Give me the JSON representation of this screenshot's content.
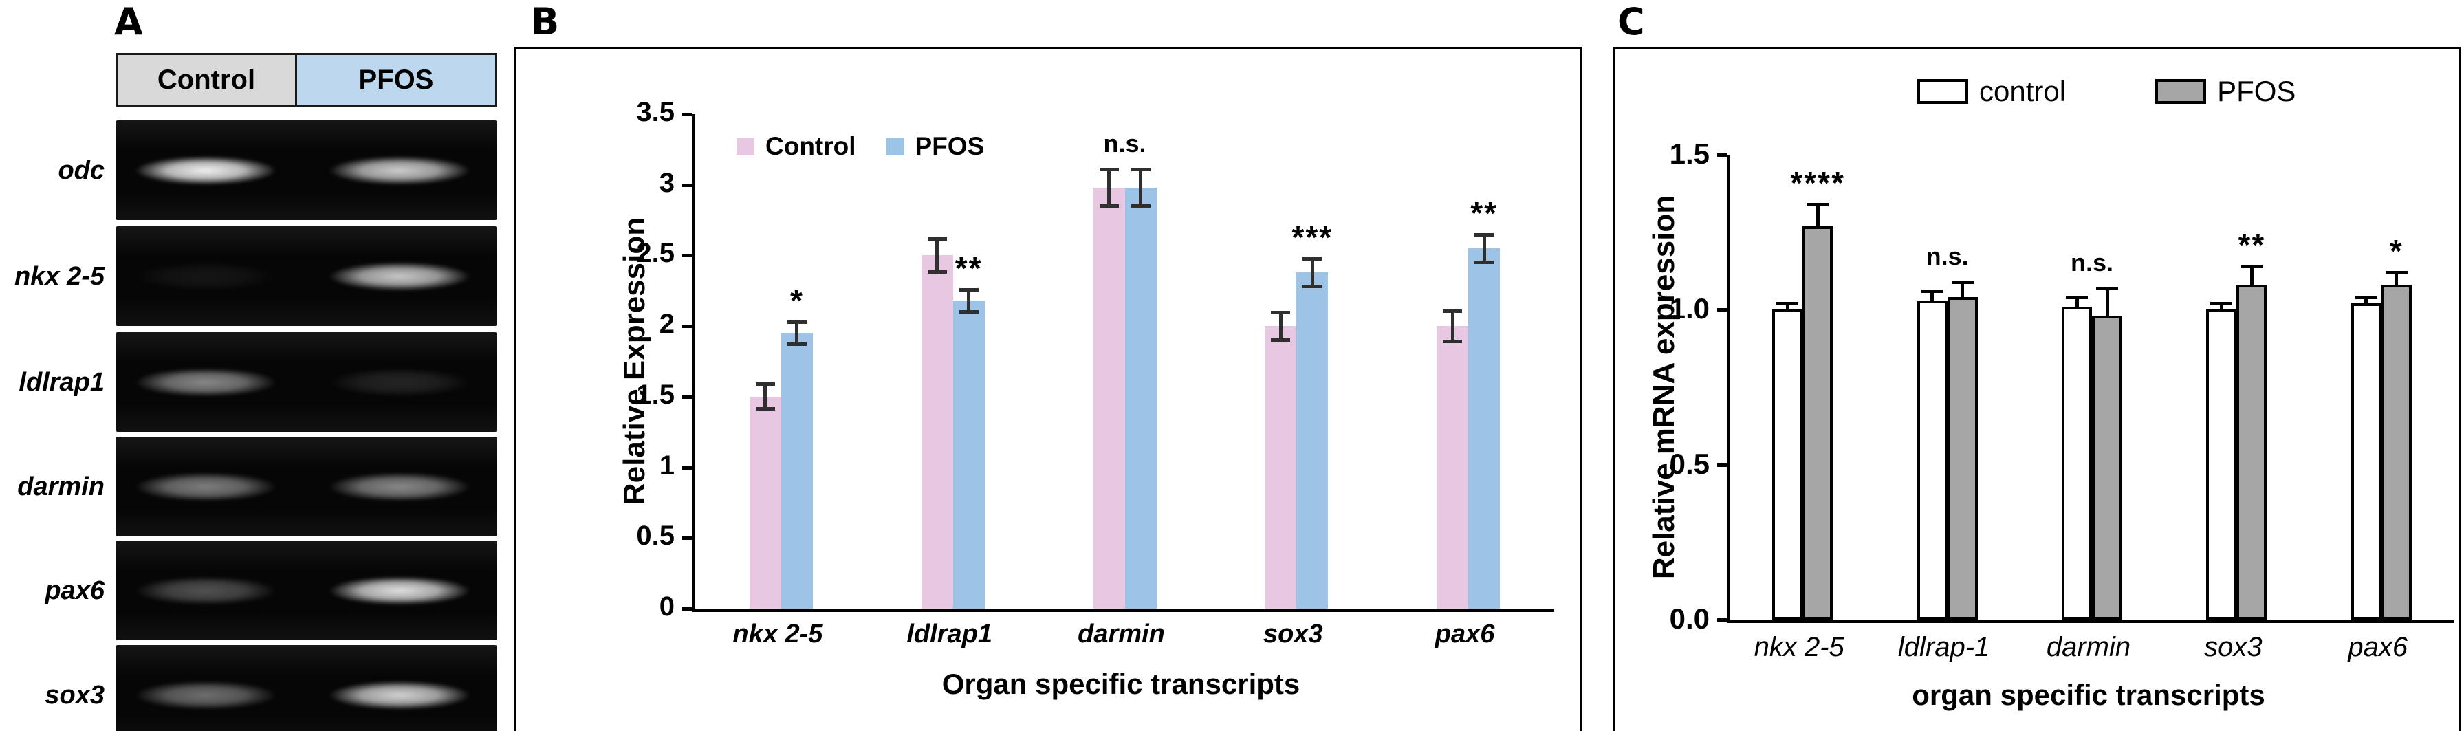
{
  "panels": {
    "a": {
      "label": "A"
    },
    "b": {
      "label": "B"
    },
    "c": {
      "label": "C"
    }
  },
  "gel": {
    "columns": [
      {
        "label": "Control",
        "color": "#d9d9d9"
      },
      {
        "label": "PFOS",
        "color": "#bdd7ee"
      }
    ],
    "rows": [
      {
        "gene": "odc",
        "bands": [
          0.95,
          0.8
        ]
      },
      {
        "gene": "nkx 2-5",
        "bands": [
          0.06,
          0.78
        ]
      },
      {
        "gene": "ldlrap1",
        "bands": [
          0.52,
          0.12
        ]
      },
      {
        "gene": "darmin",
        "bands": [
          0.48,
          0.52
        ]
      },
      {
        "gene": "pax6",
        "bands": [
          0.3,
          0.88
        ]
      },
      {
        "gene": "sox3",
        "bands": [
          0.42,
          0.82
        ]
      }
    ]
  },
  "chart_data": [
    {
      "type": "bar",
      "panel": "B",
      "categories": [
        "nkx 2-5",
        "ldlrap1",
        "darmin",
        "sox3",
        "pax6"
      ],
      "series": [
        {
          "name": "Control",
          "color": "#e7c7e1",
          "values": [
            1.5,
            2.5,
            2.98,
            2.0,
            2.0
          ],
          "errors": [
            0.09,
            0.12,
            0.13,
            0.1,
            0.11
          ]
        },
        {
          "name": "PFOS",
          "color": "#9dc3e6",
          "values": [
            1.95,
            2.18,
            2.98,
            2.38,
            2.55
          ],
          "errors": [
            0.08,
            0.08,
            0.13,
            0.1,
            0.1
          ]
        }
      ],
      "significance": [
        "*",
        "**",
        "n.s.",
        "***",
        "**"
      ],
      "xlabel": "Organ specific transcripts",
      "ylabel": "Relative Expression",
      "ylim": [
        0,
        3.5
      ],
      "yticks": [
        "0",
        "0.5",
        "1",
        "1.5",
        "2",
        "2.5",
        "3",
        "3.5"
      ],
      "grid": false,
      "legend_position": "inside-top-left"
    },
    {
      "type": "bar",
      "panel": "C",
      "categories": [
        "nkx 2-5",
        "ldlrap-1",
        "darmin",
        "sox3",
        "pax6"
      ],
      "series": [
        {
          "name": "control",
          "color": "#ffffff",
          "values": [
            1.0,
            1.03,
            1.01,
            1.0,
            1.02
          ],
          "errors": [
            0.02,
            0.03,
            0.03,
            0.02,
            0.02
          ]
        },
        {
          "name": "PFOS",
          "color": "#a6a6a6",
          "values": [
            1.27,
            1.04,
            0.98,
            1.08,
            1.08
          ],
          "errors": [
            0.07,
            0.05,
            0.09,
            0.06,
            0.04
          ]
        }
      ],
      "significance": [
        "****",
        "n.s.",
        "n.s.",
        "**",
        "*"
      ],
      "xlabel": "organ specific transcripts",
      "ylabel": "Relative mRNA expression",
      "ylim": [
        0,
        1.5
      ],
      "yticks": [
        "0.0",
        "0.5",
        "1.0",
        "1.5"
      ],
      "grid": false,
      "legend_position": "top-center"
    }
  ]
}
